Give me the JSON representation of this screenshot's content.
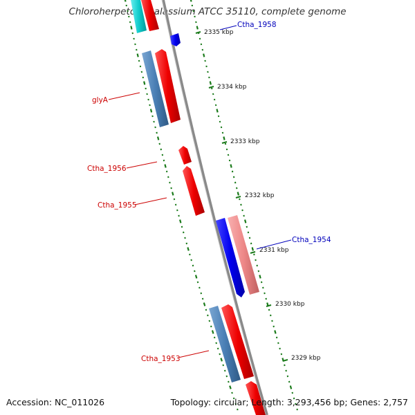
{
  "title": "Chloroherpeton thalassium ATCC 35110, complete genome",
  "footer": {
    "accession_label": "Accession:",
    "accession": "NC_011026",
    "topology_label": "Topology:",
    "topology": "circular",
    "length_label": "Length:",
    "length": "3,293,456 bp",
    "genes_label": "Genes:",
    "genes": "2,757"
  },
  "colors": {
    "backbone": "#8a8a8a",
    "forward_cds": "#ee1111",
    "reverse_cds": "#4a7fb5",
    "forward_highlight": "#1111ee",
    "reverse_highlight": "#ee8888",
    "partial_gene": "#22cccc",
    "scale_ticks": "#1a7a1a",
    "forward_label": "#cc0000",
    "reverse_label": "#0000bb"
  },
  "tick_labels": [
    {
      "kbp": 2335,
      "text": "2335 kbp"
    },
    {
      "kbp": 2334,
      "text": "2334 kbp"
    },
    {
      "kbp": 2333,
      "text": "2333 kbp"
    },
    {
      "kbp": 2332,
      "text": "2332 kbp"
    },
    {
      "kbp": 2331,
      "text": "2331 kbp"
    },
    {
      "kbp": 2330,
      "text": "2330 kbp"
    },
    {
      "kbp": 2329,
      "text": "2329 kbp"
    }
  ],
  "gene_labels": [
    {
      "name": "Ctha_1958",
      "strand": "reverse"
    },
    {
      "name": "glyA",
      "strand": "forward"
    },
    {
      "name": "Ctha_1956",
      "strand": "forward"
    },
    {
      "name": "Ctha_1955",
      "strand": "forward"
    },
    {
      "name": "Ctha_1954",
      "strand": "reverse"
    },
    {
      "name": "Ctha_1953",
      "strand": "forward"
    }
  ]
}
